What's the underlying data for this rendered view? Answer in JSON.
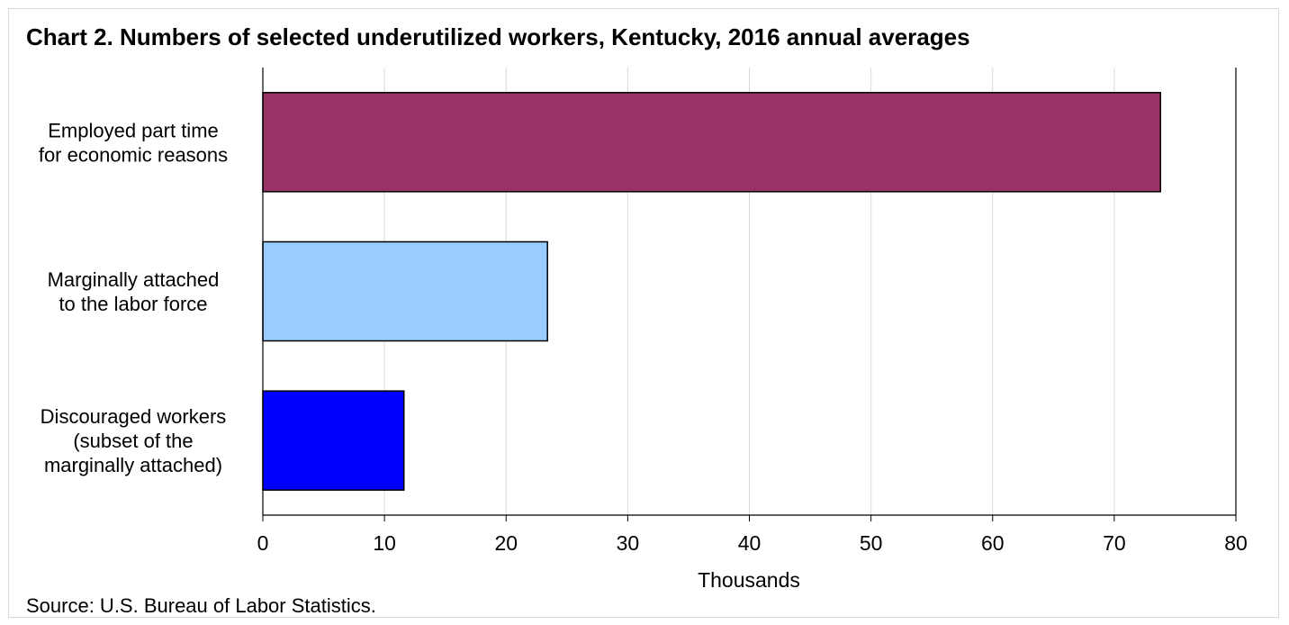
{
  "chart_data": {
    "type": "bar",
    "orientation": "horizontal",
    "title": "Chart 2. Numbers of selected underutilized workers, Kentucky, 2016 annual averages",
    "xlabel": "Thousands",
    "ylabel": "",
    "xlim": [
      0,
      80
    ],
    "xticks": [
      "0",
      "10",
      "20",
      "30",
      "40",
      "50",
      "60",
      "70",
      "80"
    ],
    "categories": [
      [
        "Employed part time",
        "for economic reasons"
      ],
      [
        "Marginally attached",
        "to the labor force"
      ],
      [
        "Discouraged workers",
        "(subset of the",
        "marginally attached)"
      ]
    ],
    "values": [
      73.8,
      23.4,
      11.6
    ],
    "colors": [
      "#993366",
      "#99ccff",
      "#0000ff"
    ],
    "grid": "vertical",
    "legend": "none"
  },
  "source": "Source: U.S. Bureau of Labor Statistics."
}
